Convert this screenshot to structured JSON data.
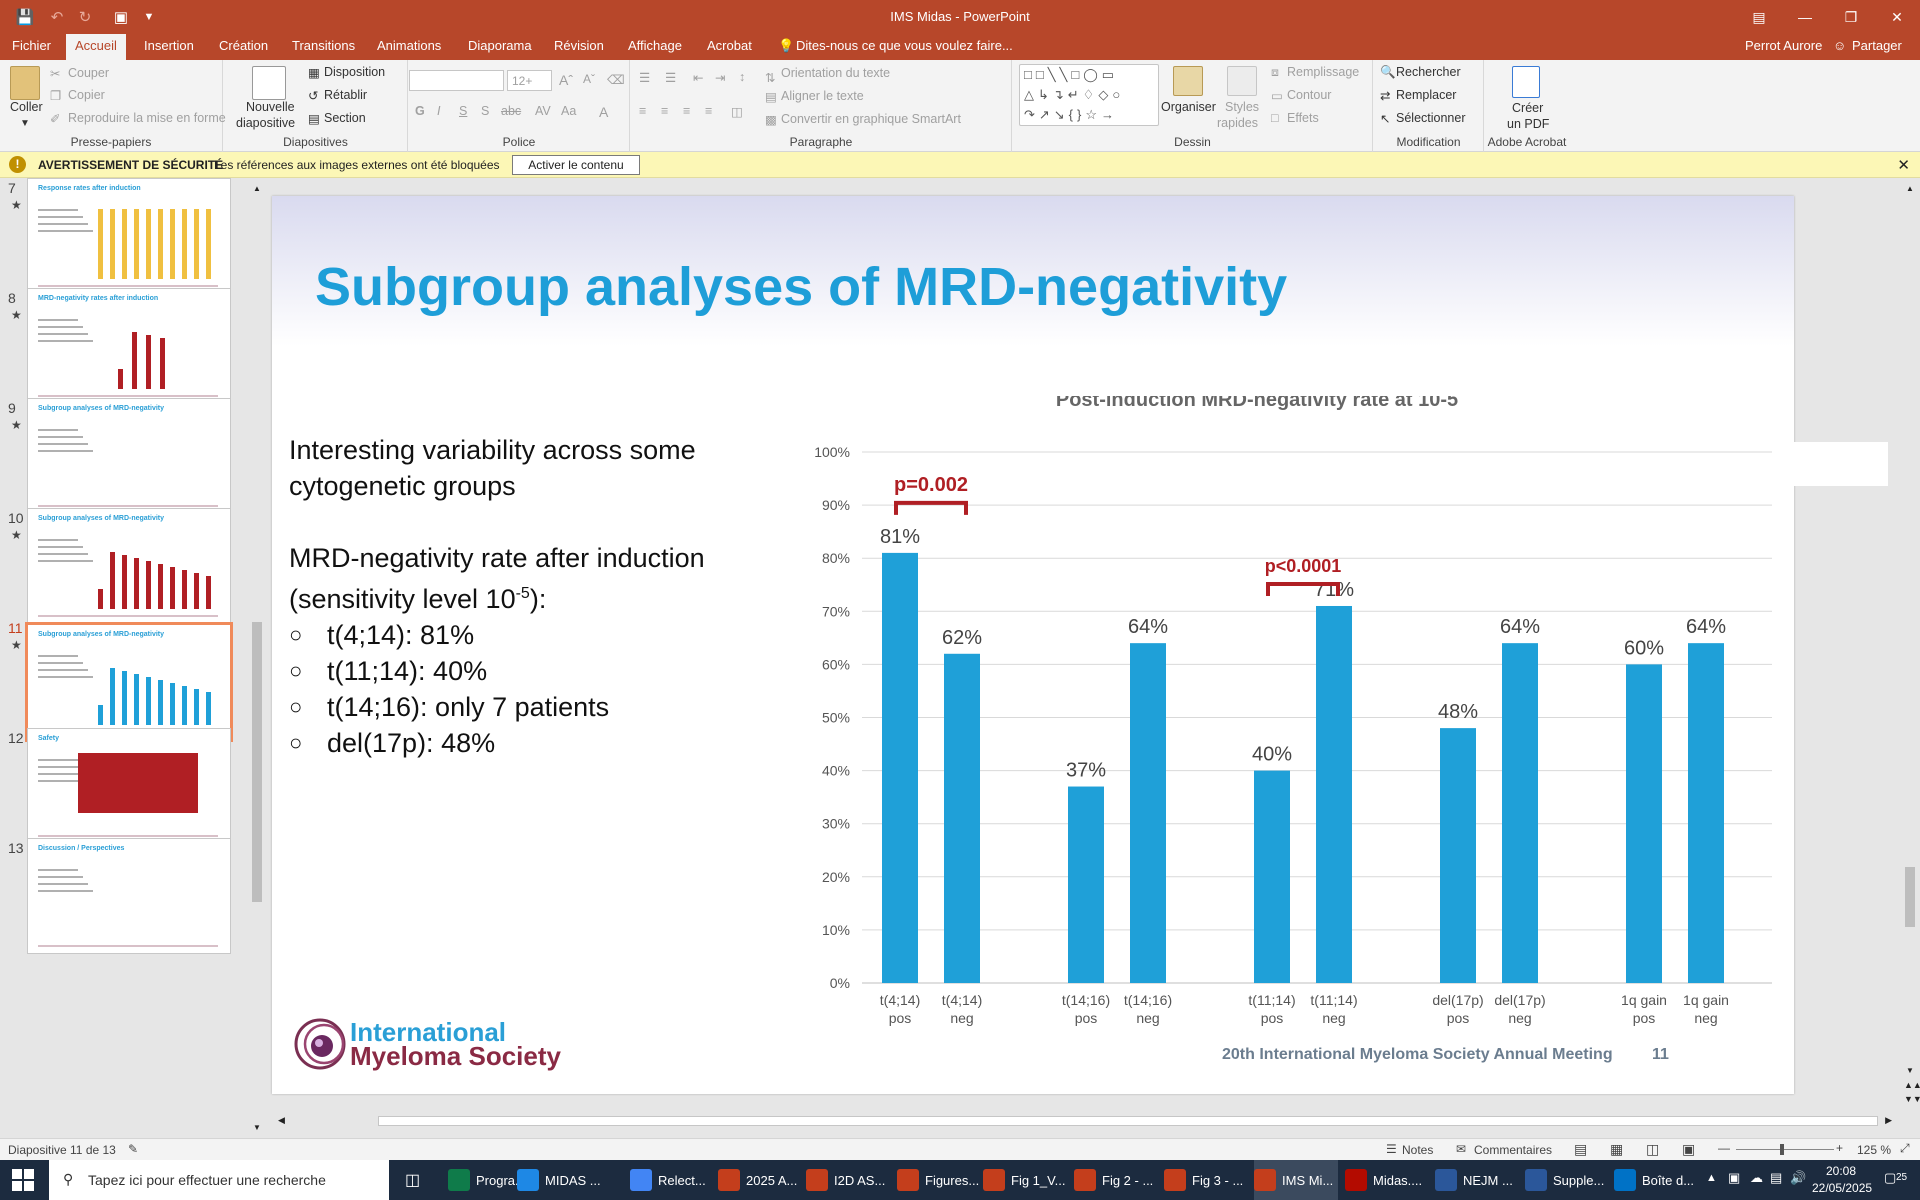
{
  "titlebar": {
    "title": "IMS Midas - PowerPoint"
  },
  "menu": {
    "tabs": [
      "Fichier",
      "Accueil",
      "Insertion",
      "Création",
      "Transitions",
      "Animations",
      "Diaporama",
      "Révision",
      "Affichage",
      "Acrobat"
    ],
    "active": "Accueil",
    "tellme": "Dites-nous ce que vous voulez faire...",
    "user": "Perrot Aurore",
    "share": "Partager"
  },
  "ribbon": {
    "clipboard": {
      "paste": "Coller",
      "cut": "Couper",
      "copy": "Copier",
      "format_painter": "Reproduire la mise en forme",
      "label": "Presse-papiers"
    },
    "slides": {
      "new_slide": "Nouvelle",
      "new_slide2": "diapositive",
      "layout": "Disposition",
      "reset": "Rétablir",
      "section": "Section",
      "label": "Diapositives"
    },
    "font": {
      "size": "12+",
      "label": "Police"
    },
    "paragraph": {
      "text_direction": "Orientation du texte",
      "align_text": "Aligner le texte",
      "smartart": "Convertir en graphique SmartArt",
      "label": "Paragraphe"
    },
    "drawing": {
      "arrange": "Organiser",
      "styles": "Styles",
      "styles2": "rapides",
      "fill": "Remplissage",
      "outline": "Contour",
      "effects": "Effets",
      "label": "Dessin"
    },
    "editing": {
      "find": "Rechercher",
      "replace": "Remplacer",
      "select": "Sélectionner",
      "label": "Modification"
    },
    "acrobat": {
      "create": "Créer",
      "create2": "un PDF",
      "label": "Adobe Acrobat"
    }
  },
  "security": {
    "title": "AVERTISSEMENT DE SÉCURITÉ",
    "message": "Les références aux images externes ont été bloquées",
    "button": "Activer le contenu"
  },
  "thumbnails": [
    {
      "num": "7",
      "title": "Response rates after induction"
    },
    {
      "num": "8",
      "title": "MRD-negativity rates after induction"
    },
    {
      "num": "9",
      "title": "Subgroup analyses of MRD-negativity"
    },
    {
      "num": "10",
      "title": "Subgroup analyses of MRD-negativity"
    },
    {
      "num": "11",
      "title": "Subgroup analyses of MRD-negativity"
    },
    {
      "num": "12",
      "title": "Safety"
    },
    {
      "num": "13",
      "title": "Discussion / Perspectives"
    }
  ],
  "slide": {
    "title": "Subgroup analyses of MRD-negativity",
    "intro1": "Interesting variability across some",
    "intro2": "cytogenetic groups",
    "rate1": "MRD-negativity rate after induction",
    "rate2_a": "(sensitivity level 10",
    "rate2_sup": "-5",
    "rate2_b": "):",
    "bullets": [
      "t(4;14): 81%",
      "t(11;14): 40%",
      "t(14;16): only 7 patients",
      "del(17p): 48%"
    ],
    "logo1": "International",
    "logo2": "Myeloma Society",
    "meeting": "20th International Myeloma Society Annual Meeting",
    "page": "11"
  },
  "chart_data": {
    "type": "bar",
    "title": "Post-induction MRD-negativity rate at 10-5",
    "categories": [
      "t(4;14) pos",
      "t(4;14) neg",
      "t(14;16) pos",
      "t(14;16) neg",
      "t(11;14) pos",
      "t(11;14) neg",
      "del(17p) pos",
      "del(17p) neg",
      "1q gain pos",
      "1q gain neg"
    ],
    "category_lines": [
      [
        "t(4;14)",
        "pos"
      ],
      [
        "t(4;14)",
        "neg"
      ],
      [
        "t(14;16)",
        "pos"
      ],
      [
        "t(14;16)",
        "neg"
      ],
      [
        "t(11;14)",
        "pos"
      ],
      [
        "t(11;14)",
        "neg"
      ],
      [
        "del(17p)",
        "pos"
      ],
      [
        "del(17p)",
        "neg"
      ],
      [
        "1q gain",
        "pos"
      ],
      [
        "1q gain",
        "neg"
      ]
    ],
    "values": [
      81,
      62,
      37,
      64,
      40,
      71,
      48,
      64,
      60,
      64
    ],
    "labels": [
      "81%",
      "62%",
      "37%",
      "64%",
      "40%",
      "71%",
      "48%",
      "64%",
      "60%",
      "64%"
    ],
    "yticks": [
      "0%",
      "10%",
      "20%",
      "30%",
      "40%",
      "50%",
      "60%",
      "70%",
      "80%",
      "90%",
      "100%"
    ],
    "ylim": [
      0,
      100
    ],
    "grid": true,
    "bar_color": "#1fa0d8",
    "annotations": [
      {
        "text": "p=0.002",
        "between": [
          0,
          1
        ]
      },
      {
        "text": "p<0.0001",
        "between": [
          4,
          5
        ]
      }
    ],
    "annotation_color": "#b01f24"
  },
  "status": {
    "slide": "Diapositive 11 de 13",
    "notes": "Notes",
    "comments": "Commentaires",
    "zoom": "125 %"
  },
  "taskbar": {
    "search": "Tapez ici pour effectuer une recherche",
    "apps": [
      "Progra...",
      "MIDAS ...",
      "Relect...",
      "2025 A...",
      "I2D AS...",
      "Figures...",
      "Fig 1_V...",
      "Fig 2 - ...",
      "Fig 3 - ...",
      "IMS Mi...",
      "Midas....",
      "NEJM ...",
      "Supple...",
      "Boîte d..."
    ],
    "time": "20:08",
    "date": "22/05/2025",
    "notif": "25"
  }
}
